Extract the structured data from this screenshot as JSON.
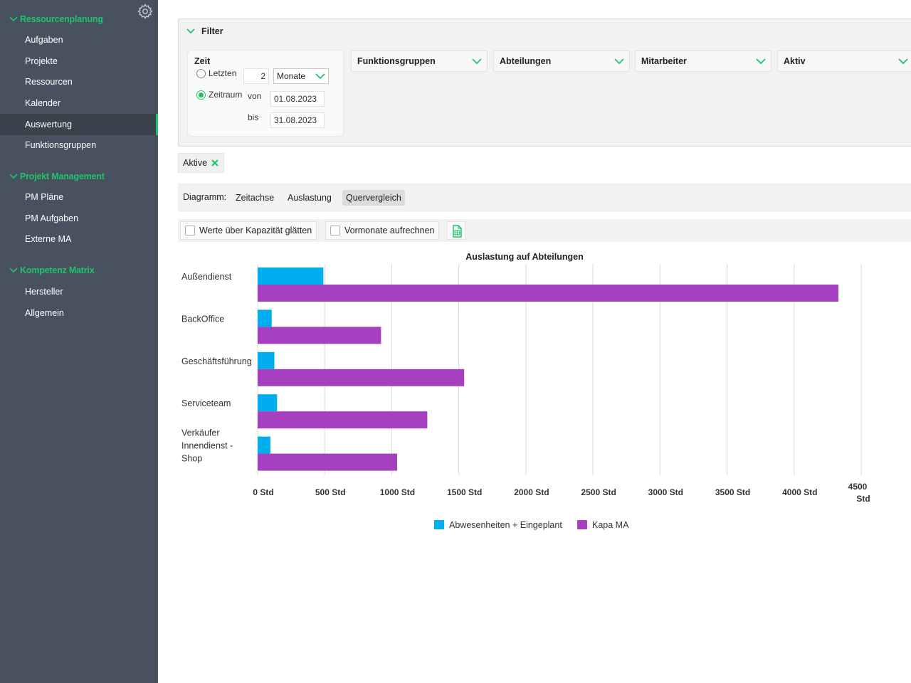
{
  "sidebar": {
    "sections": [
      {
        "label": "Ressourcenplanung",
        "items": [
          "Aufgaben",
          "Projekte",
          "Ressourcen",
          "Kalender",
          "Auswertung",
          "Funktionsgruppen"
        ]
      },
      {
        "label": "Projekt Management",
        "items": [
          "PM Pläne",
          "PM Aufgaben",
          "Externe MA"
        ]
      },
      {
        "label": "Kompetenz Matrix",
        "items": [
          "Hersteller",
          "Allgemein"
        ]
      }
    ],
    "active_item": "Auswertung",
    "accent_color": "#21c26a",
    "background_color": "#48525f"
  },
  "filter": {
    "title": "Filter",
    "zeit": {
      "label": "Zeit",
      "letzten_label": "Letzten",
      "letzten_value": "2",
      "unit": "Monate",
      "zeitraum_label": "Zeitraum",
      "von_label": "von",
      "von_value": "01.08.2023",
      "bis_label": "bis",
      "bis_value": "31.08.2023",
      "selected": "Zeitraum"
    },
    "dropdowns": [
      "Funktionsgruppen",
      "Abteilungen",
      "Mitarbeiter",
      "Aktiv"
    ]
  },
  "chip": {
    "label": "Aktive"
  },
  "diagram": {
    "label": "Diagramm:",
    "tabs": [
      "Zeitachse",
      "Auslastung",
      "Quervergleich"
    ],
    "active_tab": "Quervergleich"
  },
  "options": {
    "smooth_label": "Werte über Kapazität glätten",
    "prev_months_label": "Vormonate aufrechnen",
    "export_icon": "excel-export-icon"
  },
  "chart_data": {
    "type": "bar",
    "orientation": "horizontal",
    "title": "Auslastung auf Abteilungen",
    "categories": [
      "Außendienst",
      "BackOffice",
      "Geschäftsführung",
      "Serviceteam",
      "Verkäufer Innendienst - Shop"
    ],
    "series": [
      {
        "name": "Abwesenheiten + Eingeplant",
        "color": "#00aeef",
        "values": [
          490,
          105,
          125,
          145,
          95
        ]
      },
      {
        "name": "Kapa MA",
        "color": "#a63fc0",
        "values": [
          4330,
          920,
          1540,
          1265,
          1040
        ]
      }
    ],
    "xlim": [
      0,
      4500
    ],
    "ticks": [
      "0 Std",
      "500 Std",
      "1000 Std",
      "1500 Std",
      "2000 Std",
      "2500 Std",
      "3000 Std",
      "3500 Std",
      "4000 Std",
      "4500 Std"
    ],
    "grid": true,
    "legend_position": "bottom"
  }
}
